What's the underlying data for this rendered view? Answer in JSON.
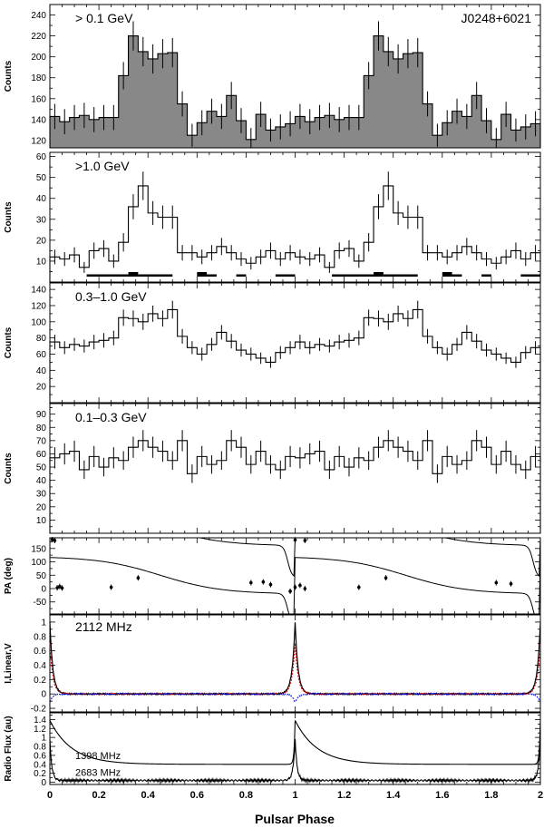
{
  "figure": {
    "source": "J0248+6021",
    "xlabel": "Pulsar Phase",
    "xlim": [
      0,
      2
    ],
    "xtick_labels": [
      "0",
      "0.2",
      "0.4",
      "0.6",
      "0.8",
      "1",
      "1.2",
      "1.4",
      "1.6",
      "1.8",
      "2"
    ]
  },
  "chart_data": [
    {
      "type": "histogram",
      "panel": "gamma_all",
      "annotation": "> 0.1 GeV",
      "source_label": "J0248+6021",
      "ylabel": "Counts",
      "ylim": [
        113,
        250
      ],
      "yticks": [
        120,
        140,
        160,
        180,
        200,
        220,
        240
      ],
      "filled": true,
      "bins_per_cycle": 25,
      "values": [
        143,
        138,
        142,
        144,
        140,
        142,
        142,
        182,
        220,
        205,
        198,
        203,
        204,
        155,
        125,
        137,
        148,
        143,
        163,
        139,
        121,
        145,
        130,
        133,
        136
      ],
      "errors": [
        12,
        12,
        12,
        12,
        12,
        12,
        12,
        13,
        14,
        14,
        14,
        14,
        14,
        12,
        11,
        12,
        12,
        12,
        13,
        12,
        11,
        12,
        11,
        12,
        12
      ]
    },
    {
      "type": "histogram",
      "panel": "gamma_above_1GeV",
      "annotation": ">1.0 GeV",
      "ylabel": "Counts",
      "ylim": [
        0,
        62
      ],
      "yticks": [
        10,
        20,
        30,
        40,
        50,
        60
      ],
      "filled": false,
      "bins_per_cycle": 25,
      "values": [
        12,
        11,
        13,
        7,
        15,
        16,
        10,
        19,
        36,
        46,
        33,
        31,
        31,
        14,
        14,
        12,
        14,
        17,
        14,
        11,
        9,
        12,
        15,
        11,
        14
      ],
      "errors": [
        3.5,
        3.3,
        3.6,
        2.6,
        3.9,
        4,
        3.2,
        4.4,
        6,
        6.8,
        5.7,
        5.6,
        5.6,
        3.7,
        3.7,
        3.5,
        3.7,
        4.1,
        3.7,
        3.3,
        3,
        3.5,
        3.9,
        3.3,
        3.7
      ],
      "bayesian_blocks": [
        {
          "start": 0.15,
          "end": 0.32,
          "level": "low"
        },
        {
          "start": 0.32,
          "end": 0.36,
          "level": "high"
        },
        {
          "start": 0.36,
          "end": 0.5,
          "level": "low"
        },
        {
          "start": 0.6,
          "end": 0.64,
          "level": "high"
        },
        {
          "start": 0.64,
          "end": 0.68,
          "level": "low"
        },
        {
          "start": 0.76,
          "end": 0.8,
          "level": "low"
        },
        {
          "start": 0.92,
          "end": 1.0,
          "level": "low"
        }
      ]
    },
    {
      "type": "histogram",
      "panel": "gamma_0.3_1GeV",
      "annotation": "0.3–1.0 GeV",
      "ylabel": "Counts",
      "ylim": [
        0,
        148
      ],
      "yticks": [
        20,
        40,
        60,
        80,
        100,
        120,
        140
      ],
      "filled": false,
      "bins_per_cycle": 25,
      "values": [
        75,
        68,
        72,
        70,
        75,
        77,
        80,
        105,
        104,
        100,
        110,
        104,
        115,
        82,
        68,
        60,
        72,
        87,
        76,
        65,
        60,
        55,
        50,
        62,
        68
      ],
      "errors": [
        9,
        8,
        8,
        8,
        9,
        9,
        9,
        10,
        10,
        10,
        10,
        10,
        11,
        9,
        8,
        8,
        8,
        9,
        9,
        8,
        8,
        7,
        7,
        8,
        8
      ]
    },
    {
      "type": "histogram",
      "panel": "gamma_0.1_0.3GeV",
      "annotation": "0.1–0.3 GeV",
      "ylabel": "Counts",
      "ylim": [
        0,
        98
      ],
      "yticks": [
        10,
        20,
        30,
        40,
        50,
        60,
        70,
        80,
        90
      ],
      "filled": false,
      "bins_per_cycle": 25,
      "values": [
        57,
        60,
        62,
        48,
        58,
        50,
        57,
        55,
        65,
        70,
        65,
        62,
        55,
        70,
        45,
        58,
        52,
        55,
        70,
        65,
        52,
        62,
        52,
        48,
        58
      ],
      "errors": [
        8,
        8,
        8,
        7,
        8,
        7,
        8,
        7,
        8,
        8,
        8,
        8,
        7,
        8,
        7,
        8,
        7,
        7,
        8,
        8,
        7,
        8,
        7,
        7,
        8
      ]
    },
    {
      "type": "scatter_with_model",
      "panel": "polarization_angle",
      "ylabel": "PA (deg)",
      "ylim": [
        -95,
        190
      ],
      "yticks": [
        -50,
        0,
        50,
        100,
        150
      ],
      "rvm_model": true,
      "points": [
        {
          "x": 0.01,
          "y": 183
        },
        {
          "x": 0.02,
          "y": 180
        },
        {
          "x": 0.03,
          "y": 3
        },
        {
          "x": 0.04,
          "y": 8
        },
        {
          "x": 0.05,
          "y": 2
        },
        {
          "x": 0.25,
          "y": 5
        },
        {
          "x": 0.36,
          "y": 40
        },
        {
          "x": 0.82,
          "y": 22
        },
        {
          "x": 0.87,
          "y": 25
        },
        {
          "x": 0.9,
          "y": 15
        },
        {
          "x": 0.98,
          "y": -10
        },
        {
          "x": 1.0,
          "y": 5
        },
        {
          "x": 1.02,
          "y": 12
        },
        {
          "x": 1.04,
          "y": 0
        },
        {
          "x": 1.0,
          "y": 182
        },
        {
          "x": 1.04,
          "y": 180
        },
        {
          "x": 1.26,
          "y": 5
        },
        {
          "x": 1.37,
          "y": 40
        },
        {
          "x": 1.82,
          "y": 22
        },
        {
          "x": 1.88,
          "y": 18
        }
      ]
    },
    {
      "type": "line",
      "panel": "polarization_profile",
      "annotation": "2112 MHz",
      "ylabel": "I,Linear,V",
      "ylim": [
        -0.25,
        1.1
      ],
      "yticks": [
        -0.2,
        0,
        0.2,
        0.4,
        0.6,
        0.8,
        1
      ],
      "series": [
        {
          "role": "total_intensity",
          "peak": 1.0,
          "color": "#000000"
        },
        {
          "role": "linear",
          "peak": 0.7,
          "color": "#cc0000"
        },
        {
          "role": "circular",
          "peak": -0.12,
          "color": "#0000cc"
        }
      ]
    },
    {
      "type": "line",
      "panel": "radio_profiles",
      "ylabel": "Radio Flux (au)",
      "ylim": [
        -0.05,
        1.55
      ],
      "yticks": [
        0,
        0.2,
        0.4,
        0.6,
        0.8,
        1,
        1.2,
        1.4
      ],
      "series": [
        {
          "name": "1398 MHz",
          "baseline": 0.4,
          "peak": 1.38
        },
        {
          "name": "2683 MHz",
          "baseline": 0.04,
          "peak": 0.95
        }
      ]
    }
  ]
}
